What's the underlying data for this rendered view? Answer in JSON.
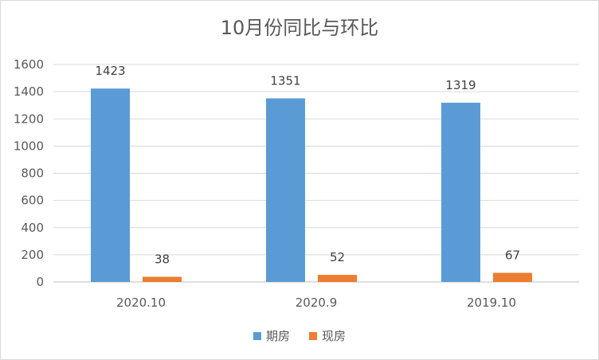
{
  "chart_data": {
    "type": "bar",
    "title": "10月份同比与环比",
    "categories": [
      "2020.10",
      "2020.9",
      "2019.10"
    ],
    "series": [
      {
        "name": "期房",
        "values": [
          1423,
          1351,
          1319
        ],
        "color": "#5b9bd5"
      },
      {
        "name": "现房",
        "values": [
          38,
          52,
          67
        ],
        "color": "#ed7d31"
      }
    ],
    "y_ticks": [
      0,
      200,
      400,
      600,
      800,
      1000,
      1200,
      1400,
      1600
    ],
    "ylim": [
      0,
      1600
    ],
    "grid": true,
    "legend_position": "bottom"
  }
}
